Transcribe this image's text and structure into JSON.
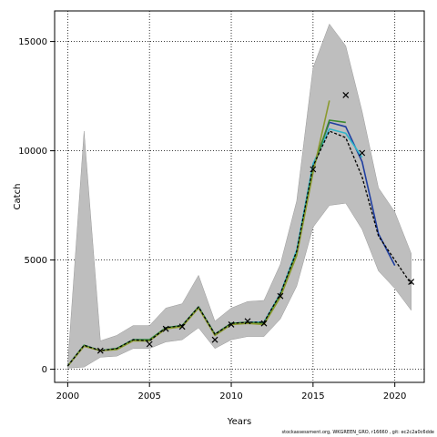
{
  "chart_data": {
    "type": "line",
    "xlabel": "Years",
    "ylabel": "Catch",
    "xlim": [
      1999.2,
      2021.8
    ],
    "ylim": [
      -600,
      16400
    ],
    "x_ticks": [
      2000,
      2005,
      2010,
      2015,
      2020
    ],
    "y_ticks": [
      0,
      5000,
      10000,
      15000
    ],
    "grid": "dotted",
    "confidence_band": {
      "color": "#bebebe",
      "x": [
        2000,
        2001,
        2002,
        2003,
        2004,
        2005,
        2006,
        2007,
        2008,
        2009,
        2010,
        2011,
        2012,
        2013,
        2014,
        2015,
        2016,
        2017,
        2018,
        2019,
        2020,
        2021
      ],
      "upper": [
        200,
        10900,
        1300,
        1550,
        2000,
        2000,
        2800,
        3000,
        4300,
        2200,
        2800,
        3100,
        3150,
        4800,
        7700,
        13800,
        15800,
        14800,
        11800,
        8300,
        7200,
        5300
      ],
      "lower": [
        50,
        100,
        550,
        600,
        950,
        950,
        1250,
        1350,
        1900,
        950,
        1350,
        1500,
        1500,
        2300,
        3800,
        6500,
        7500,
        7600,
        6400,
        4500,
        3700,
        2700
      ]
    },
    "series": [
      {
        "color": "#1f3ea0",
        "dashed": false,
        "x": [
          2000,
          2001,
          2002,
          2003,
          2004,
          2005,
          2006,
          2007,
          2008,
          2009,
          2010,
          2011,
          2012,
          2013,
          2014,
          2015,
          2016,
          2017,
          2018,
          2019,
          2020
        ],
        "values": [
          150,
          1100,
          850,
          950,
          1350,
          1350,
          1900,
          2000,
          2850,
          1600,
          2100,
          2150,
          2150,
          3450,
          5400,
          9300,
          11300,
          11100,
          9500,
          6200,
          4750
        ]
      },
      {
        "color": "#2fb5c9",
        "dashed": false,
        "x": [
          2000,
          2001,
          2002,
          2003,
          2004,
          2005,
          2006,
          2007,
          2008,
          2009,
          2010,
          2011,
          2012,
          2013,
          2014,
          2015,
          2016,
          2017,
          2018
        ],
        "values": [
          150,
          1100,
          850,
          950,
          1350,
          1350,
          1900,
          2000,
          2850,
          1600,
          2100,
          2150,
          2150,
          3450,
          5450,
          9400,
          11000,
          10800,
          9700
        ]
      },
      {
        "color": "#3b8a2e",
        "dashed": false,
        "x": [
          2000,
          2001,
          2002,
          2003,
          2004,
          2005,
          2006,
          2007,
          2008,
          2009,
          2010,
          2011,
          2012,
          2013,
          2014,
          2015,
          2016,
          2017
        ],
        "values": [
          150,
          1100,
          850,
          950,
          1350,
          1350,
          1900,
          2000,
          2850,
          1600,
          2100,
          2150,
          2100,
          3400,
          5300,
          9150,
          11400,
          11300
        ]
      },
      {
        "color": "#8b9a2e",
        "dashed": false,
        "x": [
          2000,
          2001,
          2002,
          2003,
          2004,
          2005,
          2006,
          2007,
          2008,
          2009,
          2010,
          2011,
          2012,
          2013,
          2014,
          2015,
          2016
        ],
        "values": [
          150,
          1050,
          850,
          900,
          1300,
          1300,
          1850,
          1950,
          2800,
          1550,
          2050,
          2100,
          2050,
          3300,
          5200,
          9000,
          12300
        ]
      },
      {
        "color": "#000000",
        "dashed": true,
        "x": [
          2000,
          2001,
          2002,
          2003,
          2004,
          2005,
          2006,
          2007,
          2008,
          2009,
          2010,
          2011,
          2012,
          2013,
          2014,
          2015,
          2016,
          2017,
          2018,
          2019,
          2020,
          2021
        ],
        "values": [
          150,
          1100,
          850,
          950,
          1350,
          1300,
          1900,
          2000,
          2850,
          1600,
          2100,
          2150,
          2150,
          3450,
          5400,
          9300,
          10900,
          10600,
          8800,
          6100,
          5000,
          3900
        ]
      }
    ],
    "observed": {
      "marker": "x",
      "x": [
        2002,
        2005,
        2006,
        2007,
        2009,
        2010,
        2011,
        2012,
        2013,
        2015,
        2017,
        2018,
        2021
      ],
      "values": [
        850,
        1150,
        1850,
        1950,
        1350,
        2050,
        2200,
        2100,
        3350,
        9150,
        12550,
        9900,
        4000
      ]
    }
  },
  "footer": "stockassessment.org, WKGREEN_GRO, r16660 , git: ec2c2a0c6dde"
}
